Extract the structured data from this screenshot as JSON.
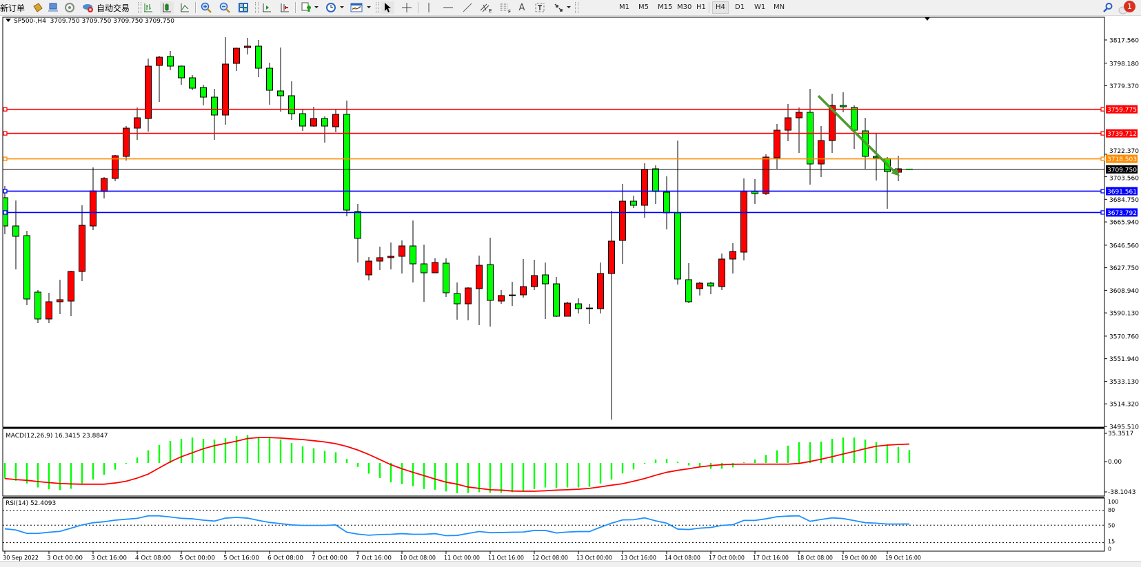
{
  "toolbar": {
    "new_order": "新订单",
    "auto_trading": "自动交易",
    "timeframes": [
      "M1",
      "M5",
      "M15",
      "M30",
      "H1",
      "H4",
      "D1",
      "W1",
      "MN"
    ],
    "active_timeframe": "H4",
    "notification_count": "1",
    "icons": [
      "folder-icon",
      "market-watch-icon",
      "signals-icon",
      "auto-trading-icon",
      "bar-chart-icon",
      "candlestick-icon",
      "line-chart-icon",
      "zoom-in-icon",
      "zoom-out-icon",
      "tile-windows-icon",
      "chart-shift-icon",
      "autoscroll-icon",
      "indicators-icon",
      "periods-icon",
      "templates-icon",
      "cursor-icon",
      "crosshair-icon",
      "vertical-line-icon",
      "horizontal-line-icon",
      "trendline-icon",
      "equidistant-channel-icon",
      "fibonacci-icon",
      "text-icon",
      "text-label-icon",
      "arrows-icon",
      "search-icon",
      "notification-icon"
    ]
  },
  "chart": {
    "symbol_label": "SP500-,H4",
    "ohlc": "3709.750 3709.750 3709.750 3709.750",
    "bull_color": "#ff0000",
    "bear_color": "#00ff00",
    "price_axis": [
      "3817.560",
      "3798.180",
      "3779.370",
      "3722.370",
      "3703.560",
      "3684.750",
      "3665.940",
      "3646.560",
      "3627.750",
      "3608.940",
      "3590.130",
      "3570.760",
      "3551.940",
      "3533.130",
      "3514.320",
      "3495.510"
    ],
    "levels": [
      {
        "price": 3759.775,
        "label": "3759.775",
        "color": "#ff0000"
      },
      {
        "price": 3739.712,
        "label": "3739.712",
        "color": "#ff0000"
      },
      {
        "price": 3718.503,
        "label": "3718.503",
        "color": "#ff8c00"
      },
      {
        "price": 3691.561,
        "label": "3691.561",
        "color": "#0000ff"
      },
      {
        "price": 3673.792,
        "label": "3673.792",
        "color": "#0000ff"
      }
    ],
    "bid": {
      "price": 3709.75,
      "label": "3709.750",
      "color": "#000000"
    },
    "arrow": {
      "color": "#4e9a2e",
      "direction": "down-right",
      "from_price": 3771.0,
      "to_price": 3704.0
    }
  },
  "chart_data": [
    {
      "type": "candlestick",
      "title": "SP500-,H4",
      "ylim": [
        3495.51,
        3817.56
      ],
      "x_labels": [
        "30 Sep 2022",
        "3 Oct 00:00",
        "3 Oct 16:00",
        "4 Oct 08:00",
        "5 Oct 00:00",
        "5 Oct 16:00",
        "6 Oct 08:00",
        "7 Oct 00:00",
        "7 Oct 16:00",
        "10 Oct 08:00",
        "11 Oct 00:00",
        "11 Oct 16:00",
        "12 Oct 08:00",
        "13 Oct 00:00",
        "13 Oct 16:00",
        "14 Oct 08:00",
        "17 Oct 00:00",
        "17 Oct 16:00",
        "18 Oct 08:00",
        "19 Oct 00:00",
        "19 Oct 16:00"
      ],
      "ohlc_fields": [
        "open",
        "high",
        "low",
        "close"
      ],
      "candles": [
        [
          3686.09,
          3695.85,
          3655.67,
          3662.56
        ],
        [
          3662.56,
          3683.8,
          3626.39,
          3653.94
        ],
        [
          3654.52,
          3658.54,
          3596.53,
          3601.7
        ],
        [
          3607.44,
          3609.16,
          3581.61,
          3585.05
        ],
        [
          3585.05,
          3606.87,
          3581.61,
          3599.4
        ],
        [
          3599.4,
          3617.78,
          3589.07,
          3601.13
        ],
        [
          3599.98,
          3625.24,
          3587.35,
          3624.66
        ],
        [
          3624.66,
          3679.78,
          3616.63,
          3663.13
        ],
        [
          3662.56,
          3711.35,
          3659.11,
          3691.83
        ],
        [
          3691.26,
          3703.32,
          3685.52,
          3702.17
        ],
        [
          3702.17,
          3721.69,
          3699.87,
          3721.11
        ],
        [
          3720.54,
          3745.8,
          3717.09,
          3744.08
        ],
        [
          3744.08,
          3761.3,
          3734.32,
          3752.69
        ],
        [
          3752.11,
          3802.06,
          3741.21,
          3795.75
        ],
        [
          3796.32,
          3804.36,
          3765.89,
          3803.21
        ],
        [
          3803.78,
          3808.38,
          3792.3,
          3795.75
        ],
        [
          3795.75,
          3796.32,
          3780.25,
          3785.99
        ],
        [
          3785.99,
          3788.28,
          3775.65,
          3777.38
        ],
        [
          3777.95,
          3780.25,
          3763.02,
          3769.91
        ],
        [
          3769.91,
          3776.8,
          3734.32,
          3754.99
        ],
        [
          3754.99,
          3819.86,
          3746.95,
          3797.47
        ],
        [
          3798.04,
          3811.25,
          3791.73,
          3810.67
        ],
        [
          3811.25,
          3819.28,
          3805.51,
          3812.4
        ],
        [
          3812.4,
          3817.56,
          3786.56,
          3794.02
        ],
        [
          3794.02,
          3798.62,
          3763.6,
          3775.65
        ],
        [
          3775.08,
          3811.25,
          3757.86,
          3771.06
        ],
        [
          3771.06,
          3783.12,
          3750.97,
          3756.13
        ],
        [
          3756.13,
          3760.15,
          3741.78,
          3745.8
        ],
        [
          3745.8,
          3761.87,
          3745.23,
          3752.11
        ],
        [
          3752.11,
          3753.84,
          3732.02,
          3745.8
        ],
        [
          3745.23,
          3759.58,
          3740.63,
          3755.56
        ],
        [
          3755.56,
          3767.04,
          3670.59,
          3675.76
        ],
        [
          3674.61,
          3680.93,
          3632.13,
          3652.22
        ],
        [
          3621.79,
          3636.72,
          3617.2,
          3633.28
        ],
        [
          3633.28,
          3645.33,
          3625.81,
          3636.15
        ],
        [
          3636.15,
          3648.78,
          3626.39,
          3637.29
        ],
        [
          3637.29,
          3650.5,
          3622.94,
          3645.91
        ],
        [
          3645.91,
          3667.15,
          3615.48,
          3630.98
        ],
        [
          3630.98,
          3647.05,
          3599.4,
          3623.52
        ],
        [
          3623.52,
          3635.57,
          3623.52,
          3632.13
        ],
        [
          3631.55,
          3635.57,
          3603.42,
          3606.87
        ],
        [
          3606.29,
          3615.48,
          3584.48,
          3597.68
        ],
        [
          3597.68,
          3611.46,
          3583.9,
          3610.89
        ],
        [
          3610.31,
          3637.87,
          3579.88,
          3629.83
        ],
        [
          3630.41,
          3652.8,
          3578.74,
          3600.55
        ],
        [
          3599.98,
          3609.16,
          3597.68,
          3604.57
        ],
        [
          3604.57,
          3616.05,
          3595.96,
          3604.8
        ],
        [
          3605.15,
          3635.0,
          3602.85,
          3612.03
        ],
        [
          3612.03,
          3634.42,
          3609.16,
          3621.22
        ],
        [
          3621.79,
          3632.13,
          3585.05,
          3614.33
        ],
        [
          3614.33,
          3620.07,
          3586.77,
          3587.35
        ],
        [
          3587.35,
          3599.4,
          3587.35,
          3598.26
        ],
        [
          3597.68,
          3602.27,
          3589.64,
          3593.66
        ],
        [
          3593.66,
          3597.68,
          3581.03,
          3593.9
        ],
        [
          3593.66,
          3632.13,
          3589.64,
          3622.94
        ],
        [
          3622.94,
          3675.19,
          3501.23,
          3649.92
        ],
        [
          3650.5,
          3697.58,
          3630.98,
          3683.22
        ],
        [
          3683.22,
          3687.82,
          3677.48,
          3679.78
        ],
        [
          3679.78,
          3714.8,
          3669.44,
          3709.63
        ],
        [
          3710.21,
          3713.08,
          3680.93,
          3691.26
        ],
        [
          3690.69,
          3703.89,
          3659.68,
          3673.46
        ],
        [
          3673.46,
          3733.74,
          3613.76,
          3618.35
        ],
        [
          3617.78,
          3631.55,
          3598.26,
          3599.4
        ],
        [
          3610.31,
          3616.05,
          3604.57,
          3614.91
        ],
        [
          3614.91,
          3616.05,
          3605.72,
          3612.61
        ],
        [
          3612.03,
          3639.59,
          3609.16,
          3635.0
        ],
        [
          3635.0,
          3648.2,
          3622.94,
          3641.31
        ],
        [
          3640.74,
          3702.17,
          3633.85,
          3691.26
        ],
        [
          3691.26,
          3701.59,
          3680.93,
          3689.54
        ],
        [
          3689.54,
          3722.26,
          3688.39,
          3719.97
        ],
        [
          3719.39,
          3747.52,
          3710.21,
          3742.36
        ],
        [
          3742.36,
          3764.17,
          3733.17,
          3752.69
        ],
        [
          3752.69,
          3761.3,
          3723.41,
          3757.28
        ],
        [
          3757.28,
          3776.8,
          3697.0,
          3714.22
        ],
        [
          3714.22,
          3745.8,
          3703.32,
          3733.74
        ],
        [
          3733.74,
          3772.78,
          3723.41,
          3763.02
        ],
        [
          3763.02,
          3773.93,
          3757.28,
          3761.87
        ],
        [
          3761.3,
          3763.02,
          3726.85,
          3742.36
        ],
        [
          3741.78,
          3752.69,
          3710.21,
          3720.54
        ],
        [
          3720.54,
          3740.06,
          3700.44,
          3719.39
        ],
        [
          3718.82,
          3719.97,
          3676.91,
          3707.91
        ],
        [
          3707.33,
          3721.11,
          3699.87,
          3710.21
        ],
        [
          3709.75,
          3709.75,
          3709.75,
          3709.75
        ]
      ]
    },
    {
      "type": "bar",
      "title": "MACD(12,26,9)",
      "label": "MACD(12,26,9) 16.3415 23.8847",
      "ylim": [
        -38.1043,
        35.3517
      ],
      "axis_labels": [
        "35.3517",
        "0.00",
        "-38.1043"
      ],
      "histogram_color": "#00ff00",
      "signal_color": "#ff0000",
      "histogram": [
        -19.7,
        -22.5,
        -25.9,
        -30.9,
        -33.2,
        -34.3,
        -32.6,
        -25.9,
        -20.9,
        -14.9,
        -8.4,
        -0.9,
        6.8,
        16.0,
        22.8,
        27.8,
        30.4,
        32.1,
        30.4,
        29.6,
        31.2,
        33.8,
        35.35,
        32.9,
        31.2,
        29.6,
        25.3,
        21.1,
        18.5,
        15.2,
        13.5,
        5.0,
        -5.0,
        -13.5,
        -19.1,
        -24.4,
        -26.8,
        -29.3,
        -32.9,
        -33.8,
        -36.0,
        -38.1,
        -38.1,
        -36.9,
        -37.7,
        -37.7,
        -36.9,
        -35.4,
        -32.9,
        -30.9,
        -31.8,
        -30.9,
        -30.9,
        -30.1,
        -25.9,
        -20.9,
        -13.2,
        -8.1,
        -0.9,
        4.3,
        5.0,
        1.6,
        -3.1,
        -4.8,
        -7.3,
        -7.3,
        -5.6,
        0.8,
        4.3,
        10.1,
        16.0,
        21.9,
        26.2,
        26.2,
        27.0,
        30.4,
        32.1,
        32.1,
        29.6,
        26.2,
        23.7,
        20.3,
        16.3415
      ],
      "signal": [
        -19.7,
        -21.0,
        -21.9,
        -23.5,
        -24.8,
        -25.9,
        -26.5,
        -26.8,
        -26.8,
        -26.8,
        -25.3,
        -23.1,
        -19.1,
        -14.1,
        -6.2,
        1.5,
        7.9,
        12.9,
        18.0,
        21.9,
        24.7,
        27.5,
        30.9,
        32.1,
        32.1,
        31.5,
        30.4,
        29.6,
        28.1,
        26.5,
        24.4,
        20.9,
        16.3,
        10.7,
        4.3,
        -2.2,
        -7.3,
        -11.8,
        -16.0,
        -20.3,
        -24.2,
        -26.8,
        -30.4,
        -32.1,
        -33.8,
        -34.3,
        -35.4,
        -35.7,
        -35.7,
        -35.1,
        -34.3,
        -33.8,
        -33.2,
        -32.1,
        -30.1,
        -28.1,
        -26.2,
        -23.1,
        -19.7,
        -15.5,
        -11.8,
        -9.3,
        -7.3,
        -5.0,
        -3.4,
        -2.2,
        -1.6,
        -1.5,
        -1.5,
        -1.5,
        -1.5,
        -1.5,
        -0.6,
        1.9,
        4.8,
        7.9,
        11.3,
        14.6,
        18.0,
        21.1,
        22.5,
        23.4,
        23.8847
      ]
    },
    {
      "type": "line",
      "title": "RSI(14)",
      "label": "RSI(14) 52.4093",
      "ylim": [
        0,
        100
      ],
      "axis_labels": [
        "100",
        "80",
        "50",
        "15",
        "0"
      ],
      "levels": [
        80,
        50,
        15
      ],
      "line_color": "#1e90ff",
      "values": [
        42.7,
        40.4,
        33.5,
        33.5,
        35.8,
        37.6,
        44.0,
        50.5,
        55.0,
        56.9,
        60.1,
        61.9,
        63.8,
        68.8,
        68.8,
        66.5,
        63.8,
        62.8,
        60.1,
        58.3,
        64.2,
        65.6,
        64.2,
        59.6,
        55.5,
        53.2,
        50.5,
        49.5,
        49.5,
        49.5,
        50.5,
        35.8,
        32.1,
        29.8,
        31.2,
        31.7,
        33.0,
        31.7,
        31.7,
        33.0,
        28.9,
        29.4,
        33.5,
        37.2,
        34.9,
        35.3,
        35.8,
        36.2,
        39.4,
        39.4,
        34.4,
        36.2,
        37.2,
        37.2,
        45.9,
        54.1,
        60.6,
        61.0,
        64.7,
        58.7,
        54.1,
        42.2,
        41.3,
        44.0,
        45.4,
        49.5,
        50.9,
        59.6,
        59.6,
        62.8,
        67.0,
        68.3,
        68.8,
        57.8,
        61.5,
        64.7,
        63.3,
        59.2,
        55.0,
        54.1,
        52.3,
        52.3,
        52.4093
      ]
    }
  ]
}
